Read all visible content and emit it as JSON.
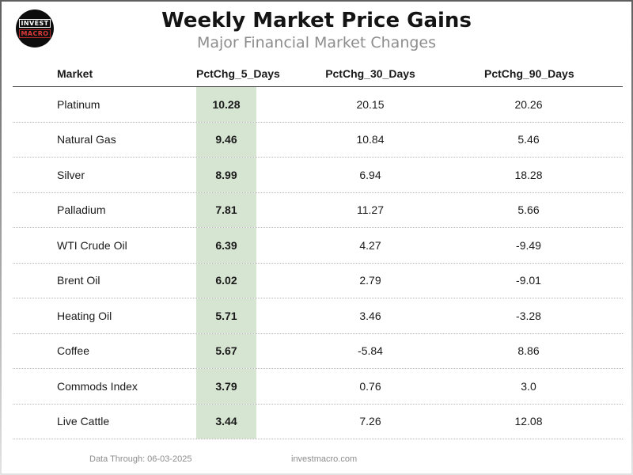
{
  "logo": {
    "top": "INVEST",
    "bottom": "MACRO"
  },
  "title": "Weekly Market Price Gains",
  "subtitle": "Major Financial Market Changes",
  "chart_data": {
    "type": "table",
    "title": "Weekly Market Price Gains",
    "subtitle": "Major Financial Market Changes",
    "columns": [
      "Market",
      "PctChg_5_Days",
      "PctChg_30_Days",
      "PctChg_90_Days"
    ],
    "rows": [
      [
        "Platinum",
        "10.28",
        "20.15",
        "20.26"
      ],
      [
        "Natural Gas",
        "9.46",
        "10.84",
        "5.46"
      ],
      [
        "Silver",
        "8.99",
        "6.94",
        "18.28"
      ],
      [
        "Palladium",
        "7.81",
        "11.27",
        "5.66"
      ],
      [
        "WTI Crude Oil",
        "6.39",
        "4.27",
        "-9.49"
      ],
      [
        "Brent Oil",
        "6.02",
        "2.79",
        "-9.01"
      ],
      [
        "Heating Oil",
        "5.71",
        "3.46",
        "-3.28"
      ],
      [
        "Coffee",
        "5.67",
        "-5.84",
        "8.86"
      ],
      [
        "Commods Index",
        "3.79",
        "0.76",
        "3.0"
      ],
      [
        "Live Cattle",
        "3.44",
        "7.26",
        "12.08"
      ]
    ],
    "highlighted_column": "PctChg_5_Days",
    "highlight_color": "#d6e4d2"
  },
  "footer": {
    "data_through": "Data Through: 06-03-2025",
    "website": "investmacro.com"
  }
}
